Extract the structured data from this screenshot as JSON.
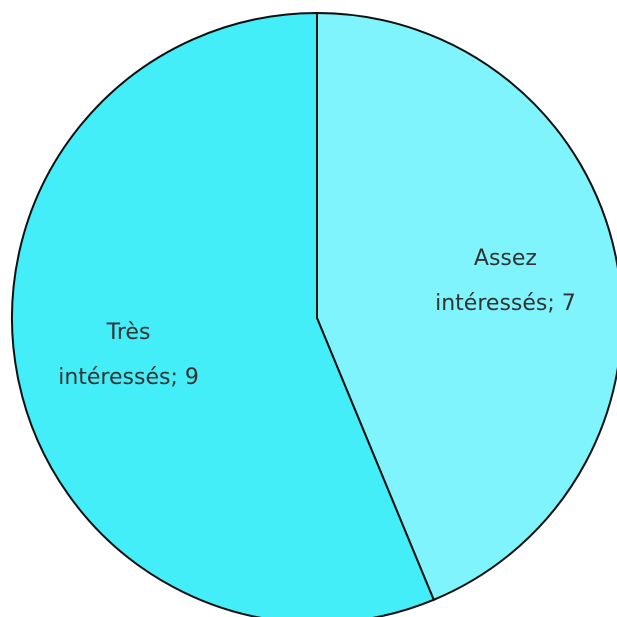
{
  "chart_data": {
    "type": "pie",
    "categories": [
      "Assez intéressés",
      "Très intéressés"
    ],
    "values": [
      7,
      9
    ],
    "value_labels": [
      "Assez intéressés; 7",
      "Très intéressés; 9"
    ],
    "colors": [
      "#80f4fc",
      "#44eef8"
    ]
  }
}
